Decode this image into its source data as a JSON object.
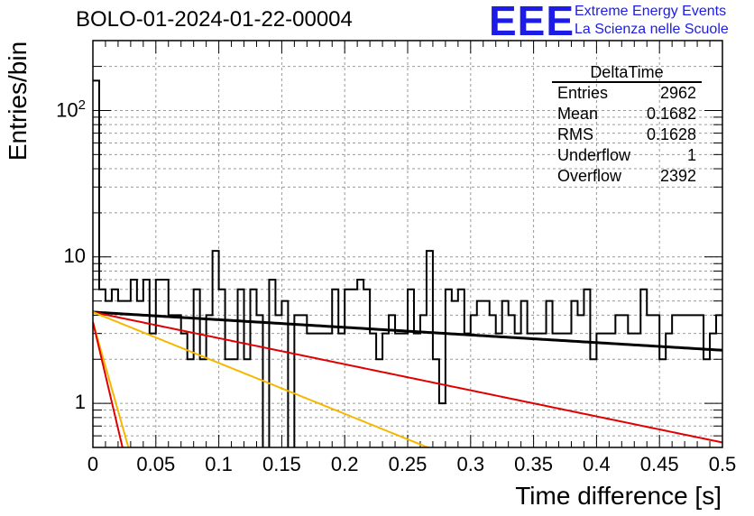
{
  "title": "BOLO-01-2024-01-22-00004",
  "logo": {
    "name": "EEE",
    "line1": "Extreme Energy Events",
    "line2": "La Scienza nelle Scuole",
    "color": "#1c1ce6"
  },
  "stats_box": {
    "title": "DeltaTime",
    "rows": [
      {
        "label": "Entries",
        "value": "2962"
      },
      {
        "label": "Mean",
        "value": "0.1682"
      },
      {
        "label": "RMS",
        "value": "0.1628"
      },
      {
        "label": "Underflow",
        "value": "1"
      },
      {
        "label": "Overflow",
        "value": "2392"
      }
    ]
  },
  "chart_data": {
    "type": "histogram",
    "title": "BOLO-01-2024-01-22-00004",
    "xlabel": "Time difference [s]",
    "ylabel": "Entries/bin",
    "xlim": [
      0,
      0.5
    ],
    "ylim": [
      0.5,
      300
    ],
    "y_scale": "log",
    "grid": true,
    "bin_width": 0.005,
    "x_ticks": [
      "0",
      "0.05",
      "0.1",
      "0.15",
      "0.2",
      "0.25",
      "0.3",
      "0.35",
      "0.4",
      "0.45",
      "0.5"
    ],
    "y_tick_labels": [
      {
        "value": 1,
        "base": "1",
        "exp": ""
      },
      {
        "value": 10,
        "base": "10",
        "exp": ""
      },
      {
        "value": 100,
        "base": "10",
        "exp": "2"
      }
    ],
    "counts": [
      160,
      6,
      5,
      6,
      5,
      5,
      7,
      5,
      7,
      3,
      7,
      7,
      4,
      4,
      3,
      2,
      6,
      2,
      4,
      11,
      6,
      2,
      2,
      6,
      2,
      6,
      4,
      0,
      7,
      4,
      5,
      0,
      4,
      4,
      3,
      3,
      3,
      3,
      6,
      3,
      6,
      6,
      7,
      6,
      3,
      2,
      3,
      4,
      3,
      3,
      6,
      3,
      4,
      11,
      2,
      1,
      6,
      5,
      6,
      3,
      4,
      5,
      5,
      4,
      3,
      5,
      4,
      3,
      5,
      3,
      3,
      3,
      5,
      3,
      3,
      3,
      5,
      4,
      6,
      2,
      3,
      3,
      3,
      4,
      4,
      3,
      3,
      6,
      4,
      4,
      2,
      3,
      4,
      4,
      4,
      4,
      4,
      2,
      3,
      4
    ],
    "fits": [
      {
        "color": "#000000",
        "amplitude": 4.2,
        "slope": 1.2,
        "x_max": 0.5
      },
      {
        "color": "#e00000",
        "amplitude": 4.2,
        "slope": 4.1,
        "x_max": 0.5
      },
      {
        "color": "#f5b800",
        "amplitude": 4.2,
        "slope": 8.0,
        "x_max": 0.5
      },
      {
        "color": "#f5b800",
        "amplitude": 3.6,
        "slope": 70.0,
        "x_max": 0.05
      },
      {
        "color": "#e00000",
        "amplitude": 3.6,
        "slope": 84.0,
        "x_max": 0.05
      }
    ]
  }
}
